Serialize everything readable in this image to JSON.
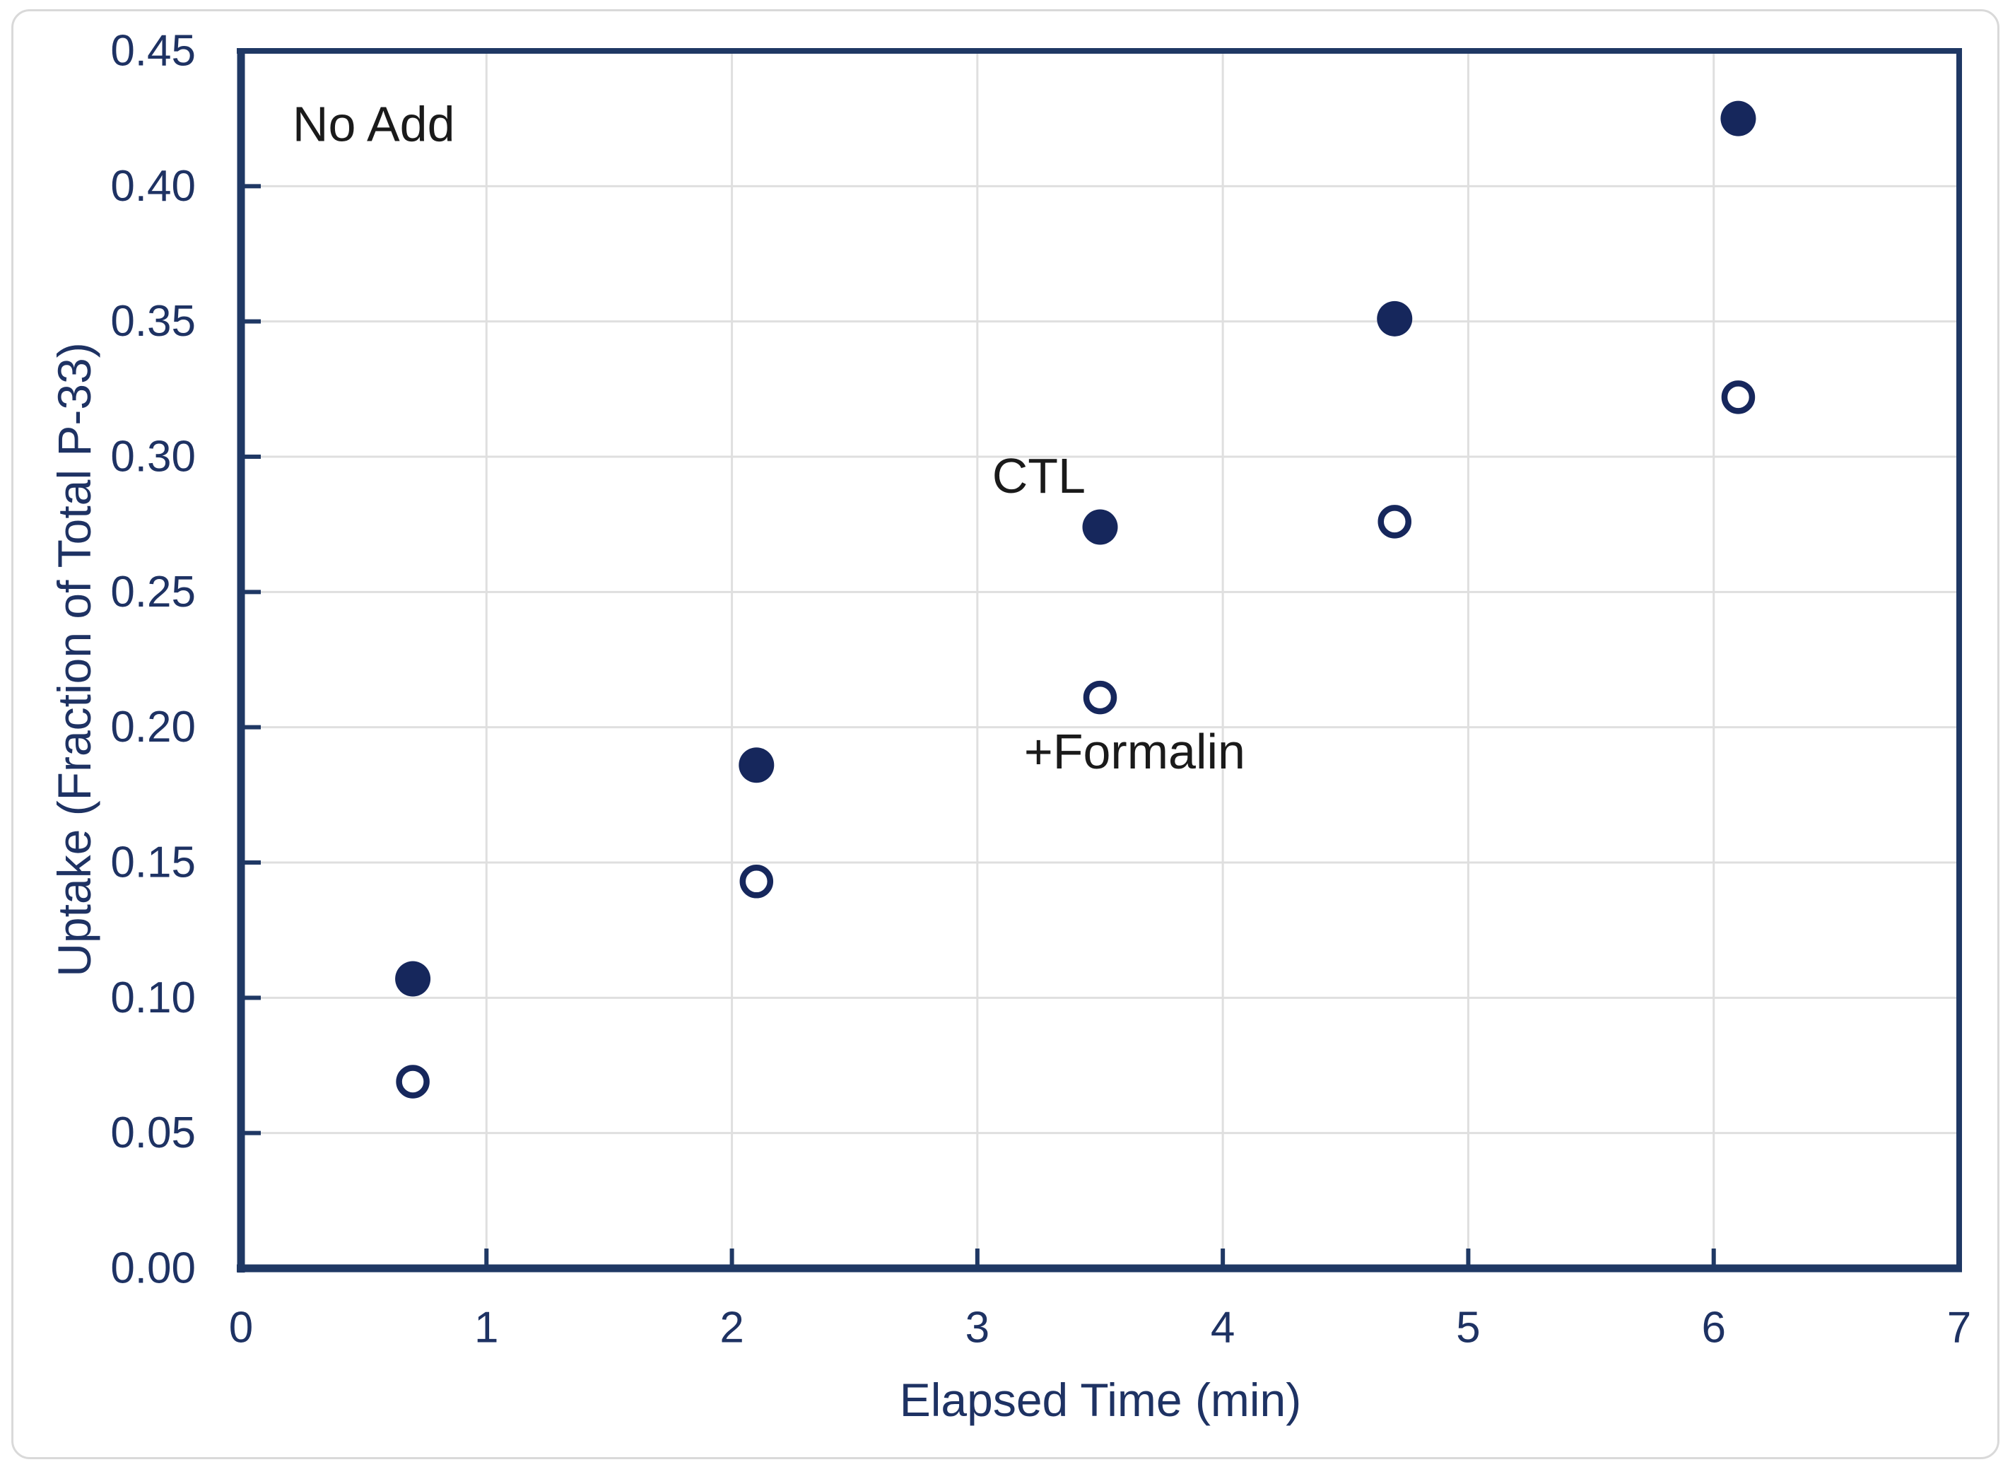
{
  "chart_data": {
    "type": "scatter",
    "title": "",
    "xlabel": "Elapsed Time (min)",
    "ylabel": "Uptake (Fraction of Total P-33)",
    "xlim": [
      0,
      7
    ],
    "ylim": [
      0.0,
      0.45
    ],
    "grid": true,
    "legend_position": "none",
    "x_ticks": [
      {
        "value": 0,
        "label": "0"
      },
      {
        "value": 1,
        "label": "1"
      },
      {
        "value": 2,
        "label": "2"
      },
      {
        "value": 3,
        "label": "3"
      },
      {
        "value": 4,
        "label": "4"
      },
      {
        "value": 5,
        "label": "5"
      },
      {
        "value": 6,
        "label": "6"
      },
      {
        "value": 7,
        "label": "7"
      }
    ],
    "y_ticks": [
      {
        "value": 0.0,
        "label": "0.00"
      },
      {
        "value": 0.05,
        "label": "0.05"
      },
      {
        "value": 0.1,
        "label": "0.10"
      },
      {
        "value": 0.15,
        "label": "0.15"
      },
      {
        "value": 0.2,
        "label": "0.20"
      },
      {
        "value": 0.25,
        "label": "0.25"
      },
      {
        "value": 0.3,
        "label": "0.30"
      },
      {
        "value": 0.35,
        "label": "0.35"
      },
      {
        "value": 0.4,
        "label": "0.40"
      },
      {
        "value": 0.45,
        "label": "0.45"
      }
    ],
    "series": [
      {
        "name": "CTL",
        "marker": "filled-circle",
        "x": [
          0.7,
          2.1,
          3.5,
          4.7,
          6.1
        ],
        "y": [
          0.107,
          0.186,
          0.274,
          0.351,
          0.425
        ]
      },
      {
        "name": "+Formalin",
        "marker": "open-circle",
        "x": [
          0.7,
          2.1,
          3.5,
          4.7,
          6.1
        ],
        "y": [
          0.069,
          0.143,
          0.211,
          0.276,
          0.322
        ]
      }
    ],
    "annotations": [
      {
        "text": "No Add",
        "x": 0.21,
        "y": 0.423
      },
      {
        "text": "CTL",
        "x": 3.06,
        "y": 0.293
      },
      {
        "text": "+Formalin",
        "x": 3.19,
        "y": 0.191
      }
    ],
    "colors": {
      "marker": "#16275c",
      "axis": "#1f3864",
      "tick_text": "#1e3263",
      "grid": "#dfdfdf",
      "annotation": "#1a1a1a",
      "card_border": "#d9d9d9",
      "background": "#ffffff"
    }
  }
}
